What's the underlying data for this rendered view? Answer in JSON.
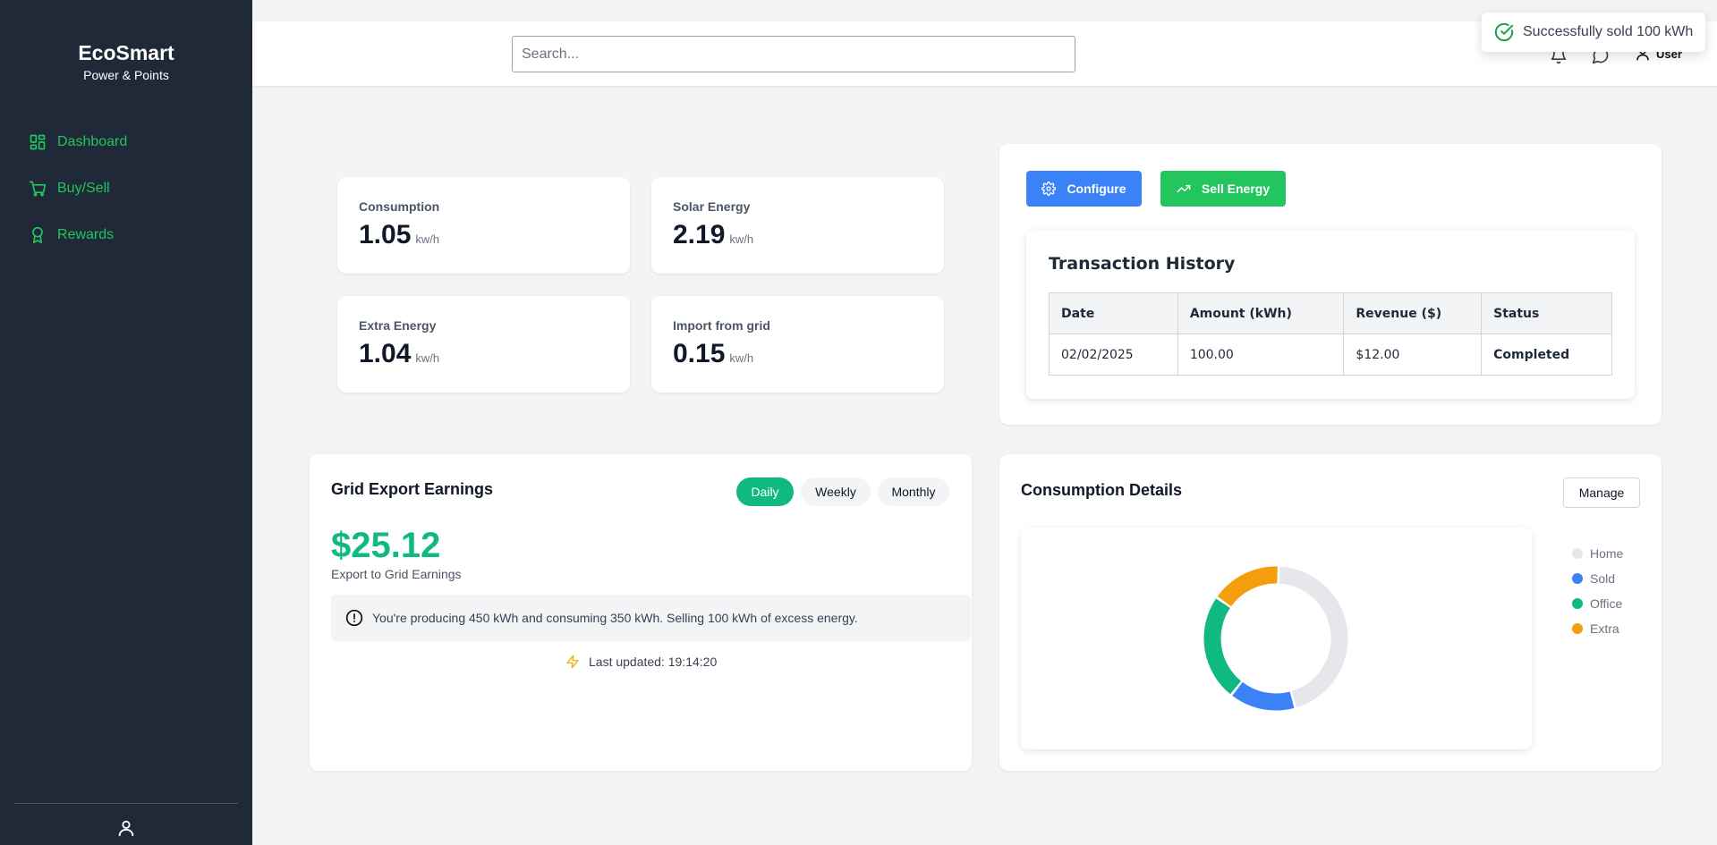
{
  "sidebar": {
    "brand_title": "EcoSmart",
    "brand_subtitle": "Power & Points",
    "items": [
      {
        "label": "Dashboard",
        "icon": "dashboard-grid-icon"
      },
      {
        "label": "Buy/Sell",
        "icon": "cart-icon"
      },
      {
        "label": "Rewards",
        "icon": "award-icon"
      }
    ]
  },
  "header": {
    "search_placeholder": "Search...",
    "user_label": "User"
  },
  "toast": {
    "message": "Successfully sold 100 kWh"
  },
  "stats": [
    {
      "label": "Consumption",
      "value": "1.05",
      "unit": "kw/h"
    },
    {
      "label": "Solar Energy",
      "value": "2.19",
      "unit": "kw/h"
    },
    {
      "label": "Extra Energy",
      "value": "1.04",
      "unit": "kw/h"
    },
    {
      "label": "Import from grid",
      "value": "0.15",
      "unit": "kw/h"
    }
  ],
  "actions": {
    "configure_label": "Configure",
    "sell_label": "Sell Energy"
  },
  "transactions": {
    "title": "Transaction History",
    "columns": [
      "Date",
      "Amount (kWh)",
      "Revenue ($)",
      "Status"
    ],
    "rows": [
      [
        "02/02/2025",
        "100.00",
        "$12.00",
        "Completed"
      ]
    ]
  },
  "earnings": {
    "title": "Grid Export Earnings",
    "tabs": [
      "Daily",
      "Weekly",
      "Monthly"
    ],
    "active_tab": "Daily",
    "amount": "$25.12",
    "subtitle": "Export to Grid Earnings",
    "info": "You're producing 450 kWh and consuming 350 kWh. Selling 100 kWh of excess energy.",
    "updated": "Last updated: 19:14:20"
  },
  "consumption": {
    "title": "Consumption Details",
    "manage_label": "Manage",
    "legend": [
      {
        "name": "Home",
        "color": "#e5e7eb"
      },
      {
        "name": "Sold",
        "color": "#3b82f6"
      },
      {
        "name": "Office",
        "color": "#10b981"
      },
      {
        "name": "Extra",
        "color": "#f59e0b"
      }
    ]
  },
  "chart_data": {
    "type": "pie",
    "categories": [
      "Home",
      "Sold",
      "Office",
      "Extra"
    ],
    "values": [
      45,
      15,
      24,
      16
    ],
    "colors": [
      "#e5e7eb",
      "#3b82f6",
      "#10b981",
      "#f59e0b"
    ]
  }
}
